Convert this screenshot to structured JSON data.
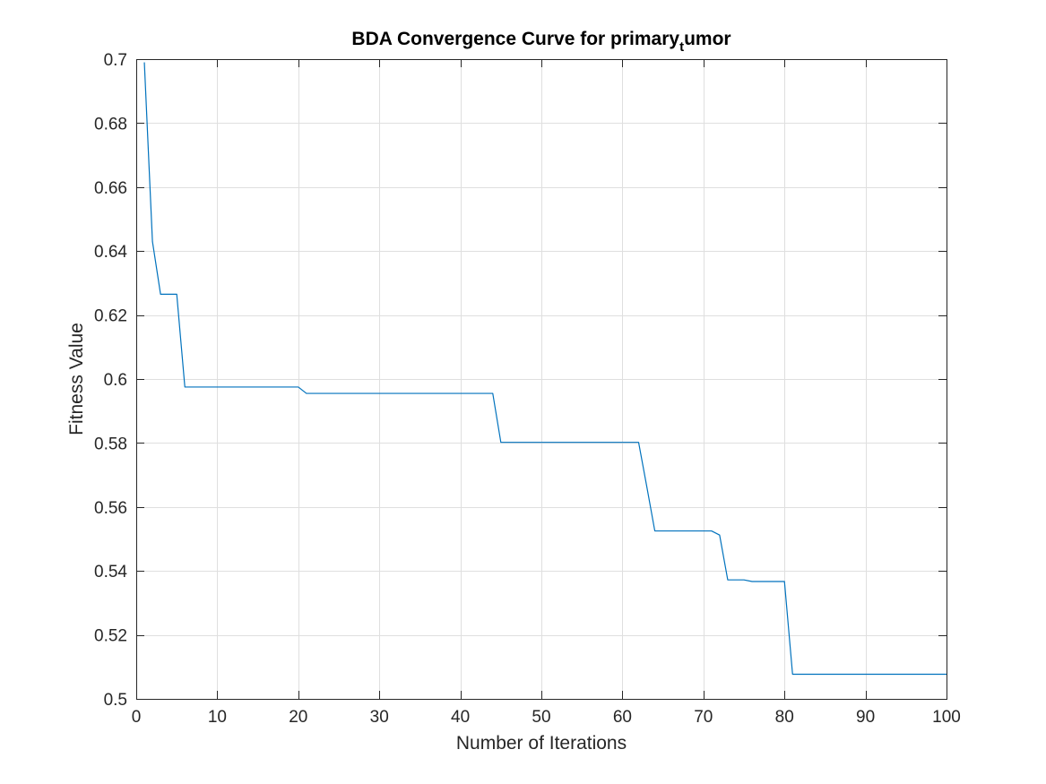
{
  "chart_data": {
    "type": "line",
    "title": {
      "main": "BDA Convergence Curve for primary",
      "subscript": "t",
      "rest": "umor"
    },
    "xlabel": "Number of Iterations",
    "ylabel": "Fitness Value",
    "xlim": [
      0,
      100
    ],
    "ylim": [
      0.5,
      0.7
    ],
    "xticks": [
      0,
      10,
      20,
      30,
      40,
      50,
      60,
      70,
      80,
      90,
      100
    ],
    "yticks": [
      0.5,
      0.52,
      0.54,
      0.56,
      0.58,
      0.6,
      0.62,
      0.64,
      0.66,
      0.68,
      0.7
    ],
    "ytick_labels": [
      "0.5",
      "0.52",
      "0.54",
      "0.56",
      "0.58",
      "0.6",
      "0.62",
      "0.64",
      "0.66",
      "0.68",
      "0.7"
    ],
    "grid": true,
    "series": [
      {
        "color": "#0072bd",
        "x": [
          1,
          2,
          3,
          4,
          5,
          6,
          20,
          21,
          44,
          45,
          62,
          63,
          64,
          71,
          72,
          73,
          75,
          76,
          80,
          81,
          100
        ],
        "y": [
          0.699,
          0.643,
          0.6265,
          0.6265,
          0.6265,
          0.5975,
          0.5975,
          0.5955,
          0.5955,
          0.5802,
          0.5802,
          0.5665,
          0.5525,
          0.5525,
          0.5512,
          0.5372,
          0.5372,
          0.5367,
          0.5367,
          0.5077,
          0.5077
        ]
      }
    ]
  }
}
